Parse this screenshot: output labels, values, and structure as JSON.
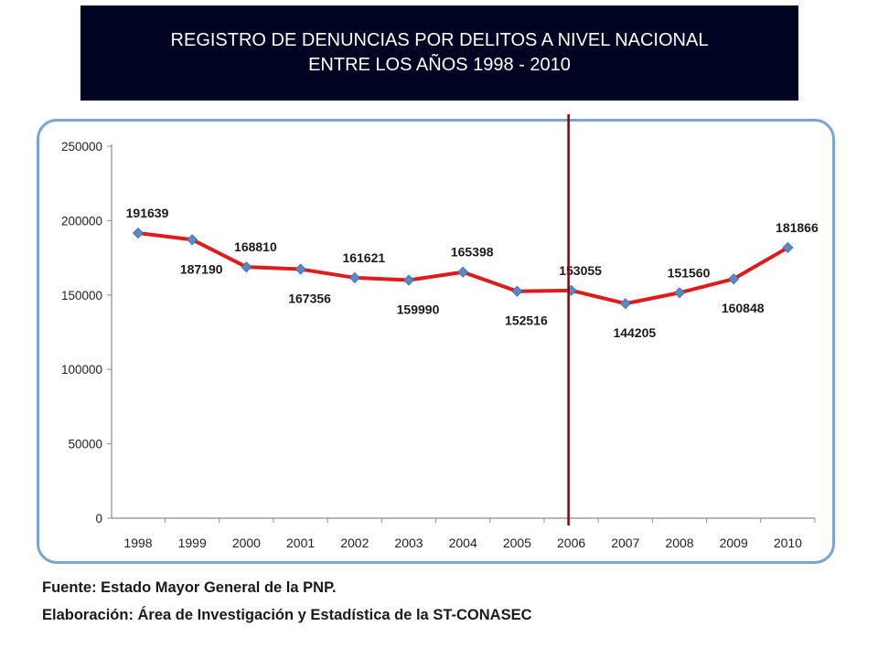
{
  "title": {
    "line1": "REGISTRO DE DENUNCIAS POR DELITOS A NIVEL NACIONAL",
    "line2": "ENTRE LOS AÑOS 1998 - 2010"
  },
  "chart_data": {
    "type": "line",
    "categories": [
      "1998",
      "1999",
      "2000",
      "2001",
      "2002",
      "2003",
      "2004",
      "2005",
      "2006",
      "2007",
      "2008",
      "2009",
      "2010"
    ],
    "series": [
      {
        "values": [
          191639,
          187190,
          168810,
          167356,
          161621,
          159990,
          165398,
          152516,
          153055,
          144205,
          151560,
          160848,
          181866
        ]
      }
    ],
    "data_labels": [
      "191639",
      "187190",
      "168810",
      "167356",
      "161621",
      "159990",
      "165398",
      "152516",
      "153055",
      "144205",
      "151560",
      "160848",
      "181866"
    ],
    "y_ticks": [
      "0",
      "50000",
      "100000",
      "150000",
      "200000",
      "250000"
    ],
    "ylim": [
      0,
      250000
    ],
    "grid": false,
    "vertical_marker_category": "2006",
    "colors": {
      "line": "#e01b1b",
      "marker": "#5b88c6",
      "marker_line": "#7a0a0a",
      "frame": "#7ba3d4"
    }
  },
  "footer": {
    "source": "Fuente: Estado Mayor General de la PNP.",
    "elaboration": "Elaboración: Área de Investigación y Estadística de la ST-CONASEC"
  }
}
